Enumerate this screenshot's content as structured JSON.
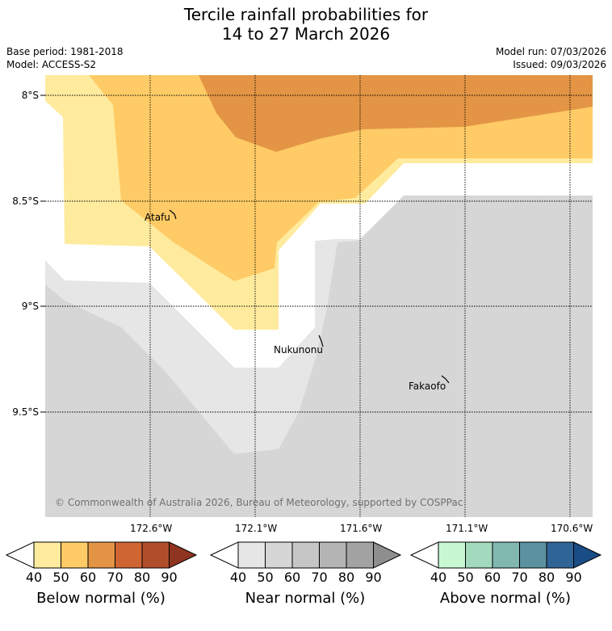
{
  "title_line1": "Tercile rainfall probabilities for",
  "title_line2": "14 to 27 March 2026",
  "base_period": "Base period: 1981-2018",
  "model": "Model: ACCESS-S2",
  "model_run": "Model run: 07/03/2026",
  "issued": "Issued: 09/03/2026",
  "lat_labels": [
    "8°S",
    "8.5°S",
    "9°S",
    "9.5°S"
  ],
  "lon_labels": [
    "172.6°W",
    "172.1°W",
    "171.6°W",
    "171.1°W",
    "170.6°W"
  ],
  "places": {
    "atafu": "Atafu",
    "nukunonu": "Nukunonu",
    "fakaofo": "Fakaofo"
  },
  "copyright": "© Commonwealth of Australia 2026, Bureau of Meteorology, supported by COSPPac",
  "colorbars": [
    {
      "title": "Below normal (%)",
      "ticks": [
        "40",
        "50",
        "60",
        "70",
        "80",
        "90"
      ],
      "colors": [
        "#ffeb9e",
        "#fecb66",
        "#e39545",
        "#cf6532",
        "#b04d2a",
        "#8f3420"
      ]
    },
    {
      "title": "Near normal (%)",
      "ticks": [
        "40",
        "50",
        "60",
        "70",
        "80",
        "90"
      ],
      "colors": [
        "#e6e6e6",
        "#d6d6d6",
        "#c6c6c6",
        "#b4b4b4",
        "#a3a3a3",
        "#8e8e8e"
      ]
    },
    {
      "title": "Above normal (%)",
      "ticks": [
        "40",
        "50",
        "60",
        "70",
        "80",
        "90"
      ],
      "colors": [
        "#c8f8d2",
        "#a3d9bd",
        "#80b8b0",
        "#5a92a0",
        "#2f6497",
        "#1a4d85"
      ]
    }
  ],
  "map_colors": {
    "below_40": "#ffeb9e",
    "below_50": "#fecb66",
    "below_60": "#e39545",
    "near_40": "#e6e6e6",
    "near_50": "#d6d6d6"
  }
}
